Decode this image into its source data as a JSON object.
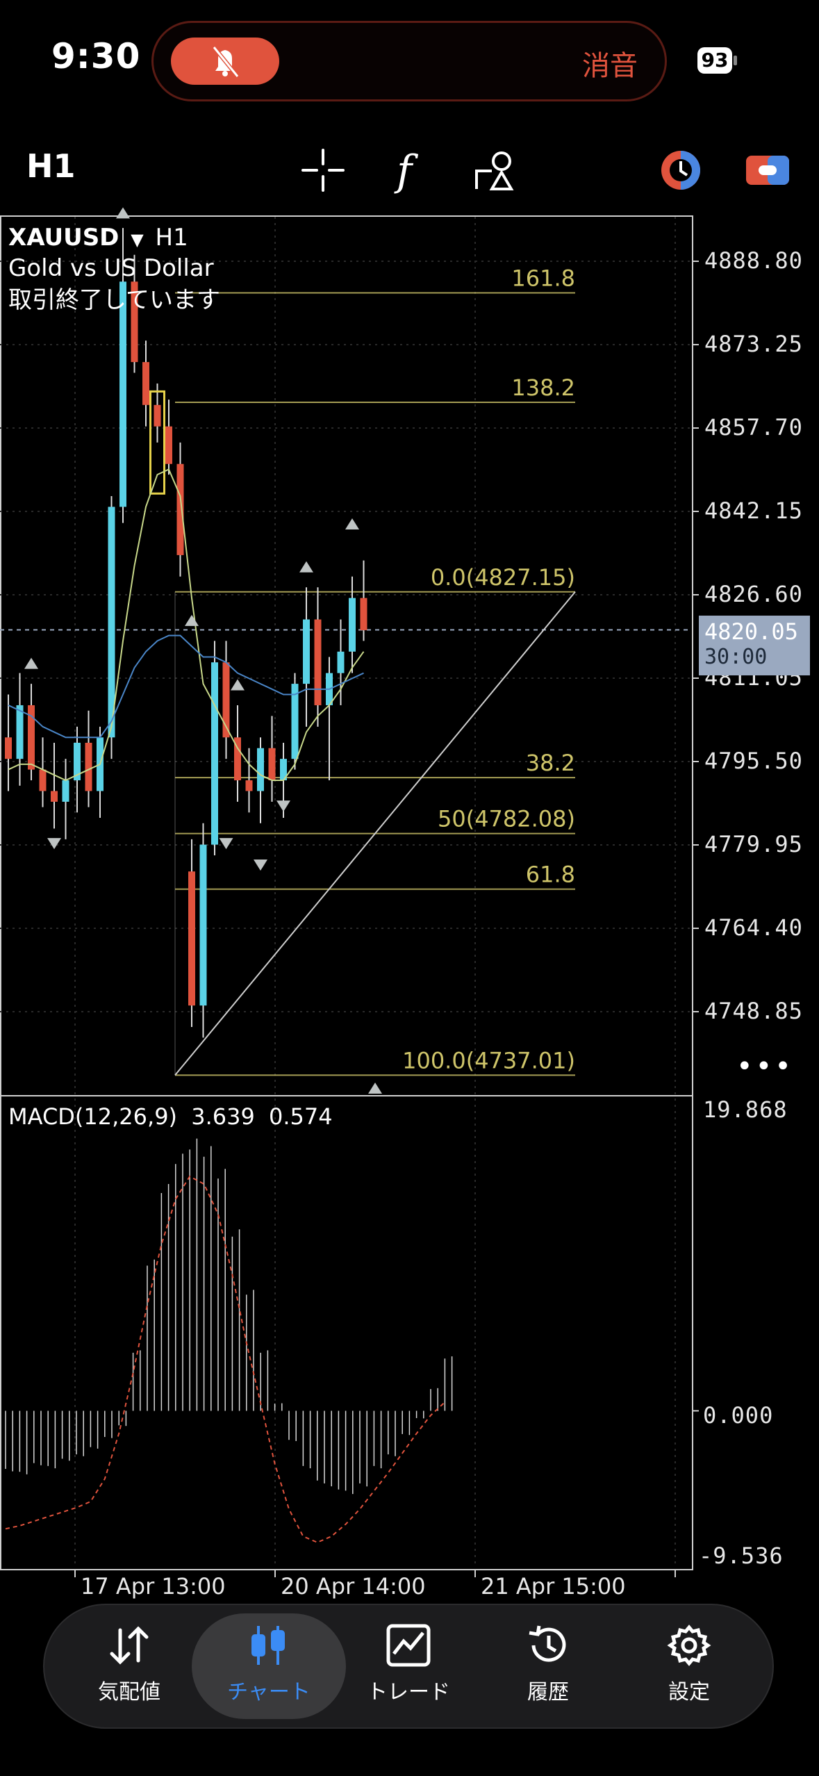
{
  "status_bar": {
    "time": "9:30",
    "mute_label": "消音",
    "battery": "93",
    "mute_icon": "bell-slash-icon"
  },
  "toolbar": {
    "timeframe": "H1",
    "icons": [
      "crosshair-icon",
      "indicator-f-icon",
      "objects-shapes-icon",
      "color-theme-icon",
      "toggle-icon"
    ]
  },
  "chart": {
    "symbol": "XAUUSD",
    "timeframe": "H1",
    "description": "Gold vs US Dollar",
    "status": "取引終了しています",
    "price_axis": [
      "4888.80",
      "4873.25",
      "4857.70",
      "4842.15",
      "4826.60",
      "4811.05",
      "4795.50",
      "4779.95",
      "4764.40",
      "4748.85"
    ],
    "current_price": "4820.05",
    "countdown": "30:00",
    "fibonacci_levels": [
      {
        "label": "161.8",
        "price": 4882.9
      },
      {
        "label": "138.2",
        "price": 4862.5
      },
      {
        "label": "0.0(4827.15)",
        "price": 4827.15
      },
      {
        "label": "38.2",
        "price": 4792.5
      },
      {
        "label": "50(4782.08)",
        "price": 4782.08
      },
      {
        "label": "61.8",
        "price": 4771.7
      },
      {
        "label": "100.0(4737.01)",
        "price": 4737.01
      }
    ],
    "time_axis": [
      "17 Apr 13:00",
      "20 Apr 14:00",
      "21 Apr 15:00"
    ],
    "colors": {
      "bull": "#5ad2e6",
      "bear": "#e0533d",
      "fibo": "#cfc56a",
      "ma_fast": "#c8d88a",
      "ma_slow": "#4a86c8"
    }
  },
  "macd": {
    "title": "MACD(12,26,9)",
    "main": "3.639",
    "signal": "0.574",
    "axis": [
      "19.868",
      "0.000",
      "-9.536"
    ]
  },
  "nav": [
    {
      "label": "気配値",
      "icon": "updown-arrows-icon",
      "active": false
    },
    {
      "label": "チャート",
      "icon": "candlestick-icon",
      "active": true
    },
    {
      "label": "トレード",
      "icon": "trade-chart-icon",
      "active": false
    },
    {
      "label": "履歴",
      "icon": "history-clock-icon",
      "active": false
    },
    {
      "label": "設定",
      "icon": "gear-icon",
      "active": false
    }
  ],
  "chart_data": {
    "type": "candlestick",
    "symbol": "XAUUSD",
    "ylim": [
      4735,
      4895
    ],
    "candles": [
      [
        4800,
        4808,
        4790,
        4796
      ],
      [
        4796,
        4812,
        4791,
        4806
      ],
      [
        4806,
        4810,
        4792,
        4794
      ],
      [
        4794,
        4800,
        4787,
        4790
      ],
      [
        4790,
        4799,
        4783,
        4788
      ],
      [
        4788,
        4796,
        4781,
        4792
      ],
      [
        4792,
        4802,
        4786,
        4799
      ],
      [
        4799,
        4805,
        4787,
        4790
      ],
      [
        4790,
        4802,
        4785,
        4800
      ],
      [
        4800,
        4845,
        4796,
        4843
      ],
      [
        4843,
        4895,
        4840,
        4885
      ],
      [
        4885,
        4890,
        4868,
        4870
      ],
      [
        4870,
        4874,
        4858,
        4862
      ],
      [
        4862,
        4866,
        4855,
        4858
      ],
      [
        4858,
        4863,
        4849,
        4851
      ],
      [
        4851,
        4855,
        4830,
        4834
      ],
      [
        4775,
        4781,
        4746,
        4750
      ],
      [
        4750,
        4784,
        4744,
        4780
      ],
      [
        4780,
        4818,
        4778,
        4814
      ],
      [
        4814,
        4818,
        4796,
        4800
      ],
      [
        4800,
        4806,
        4788,
        4792
      ],
      [
        4792,
        4798,
        4786,
        4790
      ],
      [
        4790,
        4800,
        4784,
        4798
      ],
      [
        4798,
        4804,
        4788,
        4792
      ],
      [
        4792,
        4799,
        4785,
        4796
      ],
      [
        4796,
        4812,
        4794,
        4810
      ],
      [
        4810,
        4828,
        4802,
        4822
      ],
      [
        4822,
        4828,
        4802,
        4806
      ],
      [
        4806,
        4815,
        4792,
        4812
      ],
      [
        4812,
        4822,
        4806,
        4816
      ],
      [
        4816,
        4830,
        4812,
        4826
      ],
      [
        4826,
        4833,
        4818,
        4820
      ]
    ],
    "series": [
      {
        "name": "",
        "color": "#c8d88a",
        "values": [
          4794,
          4795,
          4795,
          4794,
          4793,
          4792,
          4793,
          4794,
          4795,
          4802,
          4818,
          4832,
          4843,
          4849,
          4850,
          4845,
          4826,
          4810,
          4806,
          4802,
          4798,
          4795,
          4793,
          4792,
          4792,
          4795,
          4801,
          4804,
          4806,
          4809,
          4813,
          4816
        ]
      },
      {
        "name": "",
        "color": "#4a86c8",
        "values": [
          4806,
          4805,
          4804,
          4802,
          4801,
          4800,
          4800,
          4800,
          4800,
          4803,
          4808,
          4813,
          4816,
          4818,
          4819,
          4819,
          4817,
          4815,
          4815,
          4814,
          4812,
          4811,
          4810,
          4809,
          4808,
          4808,
          4809,
          4809,
          4809,
          4810,
          4811,
          4812
        ]
      }
    ],
    "macd_hist": [
      -4,
      -4.2,
      -3.6,
      -3.8,
      -3.3,
      -3.0,
      -2.5,
      -1.8,
      -1.0,
      4,
      10,
      15,
      17,
      18,
      17.5,
      16,
      12,
      8,
      4,
      0.5,
      -2,
      -3.8,
      -4.8,
      -5.2,
      -5.5,
      -5,
      -3.8,
      -3,
      -1.6,
      -0.5,
      1.5,
      3.6
    ],
    "macd_signal": [
      -7.8,
      -7.6,
      -7.3,
      -7.0,
      -6.7,
      -6.4,
      -6.0,
      -4.5,
      -1.5,
      2.5,
      7,
      11,
      14,
      15.5,
      15,
      13,
      9,
      4.5,
      0.5,
      -3.5,
      -6.5,
      -8.3,
      -8.7,
      -8.3,
      -7.5,
      -6.5,
      -5.3,
      -4.1,
      -2.8,
      -1.5,
      -0.3,
      0.574
    ],
    "macd_ylim": [
      -9.536,
      19.868
    ]
  }
}
